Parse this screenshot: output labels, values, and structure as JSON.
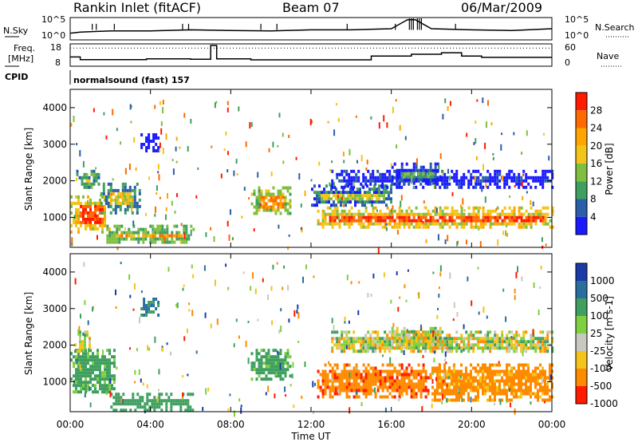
{
  "header": {
    "station": "Rankin Inlet (fitACF)",
    "beam": "Beam 07",
    "date": "06/Mar/2009"
  },
  "panel_labels": {
    "nsky": "N.Sky",
    "nsearch": "N.Search",
    "freq_line1": "Freq.",
    "freq_line2": "[MHz]",
    "nave": "Nave",
    "cpid": "CPID",
    "cpid_text": "normalsound (fast) 157",
    "noise_ticks_left": [
      "10^5",
      "10^0"
    ],
    "noise_ticks_right": [
      "10^5",
      "10^0"
    ],
    "freq_ticks": [
      "18",
      "8"
    ],
    "nave_ticks": [
      "60",
      "0"
    ]
  },
  "axes": {
    "ylabel": "Slant Range [km]",
    "xlabel": "Time UT",
    "yticks": [
      "1000",
      "2000",
      "3000",
      "4000"
    ],
    "xticks": [
      "00:00",
      "04:00",
      "08:00",
      "12:00",
      "16:00",
      "20:00",
      "00:00"
    ]
  },
  "colorbars": {
    "power": {
      "label": "Power [dB]",
      "ticks": [
        "28",
        "24",
        "20",
        "16",
        "12",
        "8",
        "4"
      ],
      "colors": [
        "#ff1a00",
        "#ff6a00",
        "#ffa500",
        "#f3c419",
        "#7fbf3f",
        "#3f9f5f",
        "#2a5fa8",
        "#1a1aff"
      ]
    },
    "velocity": {
      "label": "Velocity [m s-1]",
      "ticks": [
        "1000",
        "500",
        "100",
        "25",
        "-25",
        "-100",
        "-500",
        "-1000"
      ],
      "colors": [
        "#1a3aa8",
        "#2a6ea0",
        "#3f9f5f",
        "#7fd03f",
        "#c8c8c0",
        "#f3c419",
        "#ff8a00",
        "#ff1a00"
      ]
    }
  },
  "chart_data": [
    {
      "type": "line",
      "title": "N.Sky / N.Search",
      "x_range_hours": [
        0,
        24
      ],
      "y_scale": "log",
      "ylim": [
        "10^0",
        "10^5"
      ],
      "series": [
        {
          "name": "N.Sky",
          "x": [
            0,
            0.5,
            2,
            4,
            6,
            8,
            10,
            12,
            14,
            16,
            16.8,
            17.2,
            18,
            20,
            22,
            24
          ],
          "y": [
            0.3,
            0.35,
            0.4,
            0.4,
            0.45,
            0.42,
            0.4,
            0.45,
            0.45,
            0.5,
            0.9,
            0.9,
            0.5,
            0.45,
            0.42,
            0.5
          ]
        }
      ]
    },
    {
      "type": "line",
      "title": "Freq. / Nave",
      "x_range_hours": [
        0,
        24
      ],
      "ylim_freq": [
        8,
        18
      ],
      "ylim_nave": [
        0,
        60
      ],
      "series": [
        {
          "name": "Freq.",
          "x": [
            0,
            0.5,
            0.5,
            3.8,
            3.8,
            6,
            6,
            7,
            7,
            7.3,
            7.3,
            9,
            9,
            15,
            15,
            17,
            17,
            18.5,
            18.5,
            19.5,
            19.5,
            20.5,
            20.5,
            24
          ],
          "y": [
            12,
            12,
            10.6,
            10.6,
            11,
            11,
            10.8,
            10.8,
            18,
            18,
            11,
            11,
            10.5,
            10.5,
            12.5,
            12.5,
            13.4,
            13.4,
            14.2,
            14.2,
            12.5,
            12.5,
            11.8,
            11.8
          ]
        },
        {
          "name": "Nave",
          "x": [
            0,
            24
          ],
          "y": [
            23,
            23
          ]
        }
      ]
    },
    {
      "type": "heatmap",
      "title": "Power [dB]",
      "x_range_hours": [
        0,
        24
      ],
      "ylim_km": [
        180,
        4500
      ],
      "colorscale": [
        4,
        8,
        12,
        16,
        20,
        24,
        28
      ],
      "regions": [
        {
          "t0": 0.0,
          "t1": 2.0,
          "r0": 600,
          "r1": 1600,
          "level": 28
        },
        {
          "t0": 0.3,
          "t1": 1.4,
          "r0": 1800,
          "r1": 2300,
          "level": 20
        },
        {
          "t0": 1.5,
          "t1": 3.5,
          "r0": 1150,
          "r1": 1950,
          "level": 18
        },
        {
          "t0": 1.8,
          "t1": 6.1,
          "r0": 300,
          "r1": 800,
          "level": 22
        },
        {
          "t0": 9.0,
          "t1": 11.0,
          "r0": 1100,
          "r1": 1850,
          "level": 24
        },
        {
          "t0": 12.3,
          "t1": 24.0,
          "r0": 700,
          "r1": 1300,
          "level": 28
        },
        {
          "t0": 12.0,
          "t1": 16.0,
          "r0": 1300,
          "r1": 1900,
          "level": 16
        },
        {
          "t0": 13.0,
          "t1": 24.0,
          "r0": 1850,
          "r1": 2300,
          "level": 12
        },
        {
          "t0": 16.0,
          "t1": 18.5,
          "r0": 1900,
          "r1": 2500,
          "level": 12
        },
        {
          "t0": 3.5,
          "t1": 4.4,
          "r0": 2800,
          "r1": 3300,
          "level": 8
        }
      ]
    },
    {
      "type": "heatmap",
      "title": "Velocity [m s-1]",
      "x_range_hours": [
        0,
        24
      ],
      "ylim_km": [
        180,
        4500
      ],
      "colorscale": [
        -1000,
        -500,
        -100,
        -25,
        25,
        100,
        500,
        1000
      ],
      "regions": [
        {
          "t0": 0.0,
          "t1": 2.2,
          "r0": 700,
          "r1": 1900,
          "level": 200
        },
        {
          "t0": 0.2,
          "t1": 1.0,
          "r0": 1800,
          "r1": 2400,
          "level": 0
        },
        {
          "t0": 2.0,
          "t1": 6.1,
          "r0": 250,
          "r1": 700,
          "level": 300
        },
        {
          "t0": 9.0,
          "t1": 11.0,
          "r0": 1100,
          "r1": 1900,
          "level": 200
        },
        {
          "t0": 12.3,
          "t1": 18.0,
          "r0": 600,
          "r1": 1500,
          "level": -400
        },
        {
          "t0": 18.0,
          "t1": 24.0,
          "r0": 500,
          "r1": 1500,
          "level": -200
        },
        {
          "t0": 13.0,
          "t1": 24.0,
          "r0": 1800,
          "r1": 2400,
          "level": 0
        },
        {
          "t0": 16.0,
          "t1": 18.5,
          "r0": 1900,
          "r1": 2500,
          "level": 0
        },
        {
          "t0": 3.5,
          "t1": 4.4,
          "r0": 2800,
          "r1": 3300,
          "level": 500
        }
      ]
    }
  ]
}
